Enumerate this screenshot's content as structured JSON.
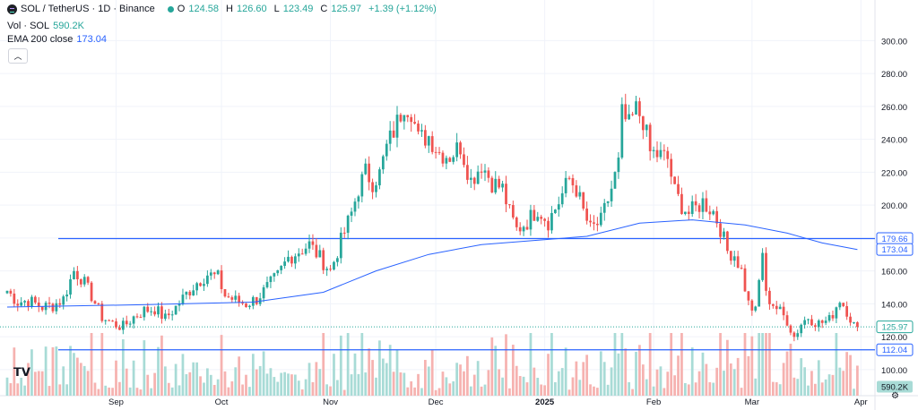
{
  "header": {
    "symbol": "SOL / TetherUS · 1D · Binance",
    "ohlc": [
      {
        "k": "O",
        "v": "124.58"
      },
      {
        "k": "H",
        "v": "126.60"
      },
      {
        "k": "L",
        "v": "123.49"
      },
      {
        "k": "C",
        "v": "125.97"
      }
    ],
    "change": "+1.39 (+1.12%)",
    "vol_label": "Vol · SOL",
    "vol_value": "590.2K",
    "ema_label": "EMA 200 close",
    "ema_value": "173.04",
    "collapse_icon": "chevron-up-icon"
  },
  "colors": {
    "up": "#26a69a",
    "down": "#ef5350",
    "ema": "#2962ff",
    "hline": "#2962ff",
    "up_vol": "#a8dbd6",
    "down_vol": "#f6b2b0"
  },
  "chart_data": {
    "type": "candlestick",
    "title": "SOL / TetherUS · 1D · Binance",
    "x_tick_labels": [
      "Sep",
      "Oct",
      "Nov",
      "Dec",
      "2025",
      "Feb",
      "Mar",
      "Apr"
    ],
    "x_tick_days": [
      31,
      61,
      92,
      122,
      153,
      184,
      212,
      243
    ],
    "y_ticks": [
      100,
      120,
      140,
      160,
      180,
      200,
      220,
      240,
      260,
      280,
      300
    ],
    "ylim": [
      93.4,
      304
    ],
    "x_days": [
      0,
      247
    ],
    "anchors": [
      {
        "d": 0,
        "c": 148
      },
      {
        "d": 3,
        "c": 141
      },
      {
        "d": 6,
        "c": 142
      },
      {
        "d": 10,
        "c": 138
      },
      {
        "d": 13,
        "c": 139
      },
      {
        "d": 16,
        "c": 143
      },
      {
        "d": 19,
        "c": 160
      },
      {
        "d": 21,
        "c": 156
      },
      {
        "d": 24,
        "c": 145
      },
      {
        "d": 27,
        "c": 132
      },
      {
        "d": 30,
        "c": 128
      },
      {
        "d": 33,
        "c": 126
      },
      {
        "d": 36,
        "c": 132
      },
      {
        "d": 39,
        "c": 136
      },
      {
        "d": 42,
        "c": 137
      },
      {
        "d": 45,
        "c": 131
      },
      {
        "d": 48,
        "c": 138
      },
      {
        "d": 51,
        "c": 146
      },
      {
        "d": 54,
        "c": 153
      },
      {
        "d": 57,
        "c": 158
      },
      {
        "d": 60,
        "c": 156
      },
      {
        "d": 62,
        "c": 145
      },
      {
        "d": 65,
        "c": 142
      },
      {
        "d": 68,
        "c": 140
      },
      {
        "d": 71,
        "c": 143
      },
      {
        "d": 74,
        "c": 150
      },
      {
        "d": 77,
        "c": 157
      },
      {
        "d": 80,
        "c": 168
      },
      {
        "d": 83,
        "c": 172
      },
      {
        "d": 86,
        "c": 176
      },
      {
        "d": 89,
        "c": 168
      },
      {
        "d": 92,
        "c": 160
      },
      {
        "d": 95,
        "c": 178
      },
      {
        "d": 98,
        "c": 195
      },
      {
        "d": 100,
        "c": 210
      },
      {
        "d": 102,
        "c": 220
      },
      {
        "d": 104,
        "c": 214
      },
      {
        "d": 106,
        "c": 219
      },
      {
        "d": 108,
        "c": 235
      },
      {
        "d": 111,
        "c": 250
      },
      {
        "d": 113,
        "c": 262
      },
      {
        "d": 115,
        "c": 258
      },
      {
        "d": 117,
        "c": 240
      },
      {
        "d": 120,
        "c": 242
      },
      {
        "d": 123,
        "c": 232
      },
      {
        "d": 126,
        "c": 230
      },
      {
        "d": 129,
        "c": 236
      },
      {
        "d": 132,
        "c": 215
      },
      {
        "d": 135,
        "c": 225
      },
      {
        "d": 138,
        "c": 214
      },
      {
        "d": 141,
        "c": 210
      },
      {
        "d": 143,
        "c": 195
      },
      {
        "d": 145,
        "c": 185
      },
      {
        "d": 148,
        "c": 190
      },
      {
        "d": 151,
        "c": 198
      },
      {
        "d": 154,
        "c": 190
      },
      {
        "d": 157,
        "c": 202
      },
      {
        "d": 160,
        "c": 216
      },
      {
        "d": 162,
        "c": 210
      },
      {
        "d": 164,
        "c": 196
      },
      {
        "d": 166,
        "c": 185
      },
      {
        "d": 169,
        "c": 190
      },
      {
        "d": 172,
        "c": 210
      },
      {
        "d": 174,
        "c": 225
      },
      {
        "d": 175,
        "c": 255
      },
      {
        "d": 177,
        "c": 248
      },
      {
        "d": 179,
        "c": 258
      },
      {
        "d": 181,
        "c": 252
      },
      {
        "d": 183,
        "c": 232
      },
      {
        "d": 186,
        "c": 230
      },
      {
        "d": 188,
        "c": 228
      },
      {
        "d": 190,
        "c": 208
      },
      {
        "d": 192,
        "c": 200
      },
      {
        "d": 194,
        "c": 195
      },
      {
        "d": 196,
        "c": 198
      },
      {
        "d": 198,
        "c": 202
      },
      {
        "d": 201,
        "c": 196
      },
      {
        "d": 203,
        "c": 186
      },
      {
        "d": 205,
        "c": 172
      },
      {
        "d": 207,
        "c": 170
      },
      {
        "d": 209,
        "c": 160
      },
      {
        "d": 211,
        "c": 140
      },
      {
        "d": 213,
        "c": 135
      },
      {
        "d": 215,
        "c": 172
      },
      {
        "d": 216,
        "c": 145
      },
      {
        "d": 218,
        "c": 140
      },
      {
        "d": 220,
        "c": 135
      },
      {
        "d": 222,
        "c": 130
      },
      {
        "d": 224,
        "c": 120
      },
      {
        "d": 226,
        "c": 128
      },
      {
        "d": 228,
        "c": 132
      },
      {
        "d": 231,
        "c": 128
      },
      {
        "d": 234,
        "c": 130
      },
      {
        "d": 237,
        "c": 143
      },
      {
        "d": 239,
        "c": 136
      },
      {
        "d": 241,
        "c": 127
      },
      {
        "d": 242,
        "c": 125.97
      }
    ],
    "ema200": [
      {
        "d": 0,
        "v": 138
      },
      {
        "d": 40,
        "v": 139.5
      },
      {
        "d": 70,
        "v": 141
      },
      {
        "d": 90,
        "v": 147
      },
      {
        "d": 105,
        "v": 160
      },
      {
        "d": 120,
        "v": 170
      },
      {
        "d": 135,
        "v": 176
      },
      {
        "d": 150,
        "v": 178.5
      },
      {
        "d": 165,
        "v": 181
      },
      {
        "d": 180,
        "v": 189
      },
      {
        "d": 195,
        "v": 191
      },
      {
        "d": 210,
        "v": 188
      },
      {
        "d": 222,
        "v": 183
      },
      {
        "d": 232,
        "v": 177
      },
      {
        "d": 242,
        "v": 173.04
      }
    ],
    "horizontal_lines": [
      179.66,
      112.04
    ],
    "price_labels": [
      {
        "text": "179.66",
        "kind": "line"
      },
      {
        "text": "173.04",
        "kind": "ema"
      },
      {
        "text": "125.97",
        "kind": "last"
      },
      {
        "text": "112.04",
        "kind": "line"
      },
      {
        "text": "590.2K",
        "kind": "volume"
      }
    ]
  }
}
